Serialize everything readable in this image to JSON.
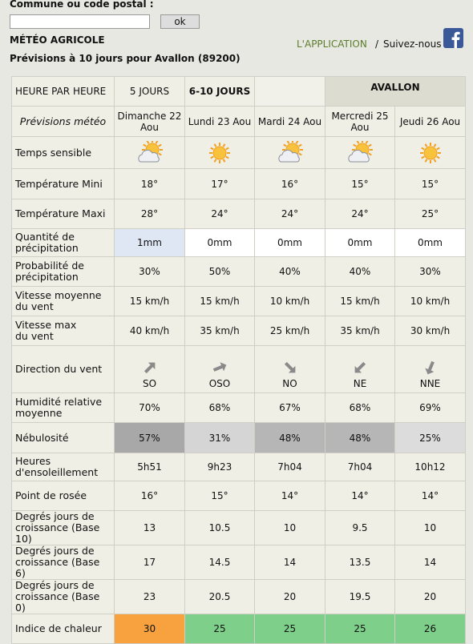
{
  "search": {
    "label": "Commune ou code postal :",
    "button": "ok"
  },
  "header": {
    "title": "MÉTÉO AGRICOLE",
    "subtitle": "Prévisions à 10 jours pour Avallon (89200)",
    "app_link": "L'APPLICATION",
    "separator": "/",
    "follow": "Suivez-nous"
  },
  "tabs": [
    "HEURE PAR HEURE",
    "5 JOURS",
    "6-10 JOURS"
  ],
  "location": "AVALLON",
  "table": {
    "corner": "Prévisions météo",
    "days": [
      "Dimanche 22 Aou",
      "Lundi 23 Aou",
      "Mardi 24 Aou",
      "Mercredi 25 Aou",
      "Jeudi 26 Aou"
    ],
    "rows": [
      {
        "label": "Temps sensible"
      },
      {
        "label": "Température Mini",
        "values": [
          "18°",
          "17°",
          "16°",
          "15°",
          "15°"
        ]
      },
      {
        "label": "Température Maxi",
        "values": [
          "28°",
          "24°",
          "24°",
          "24°",
          "25°"
        ]
      },
      {
        "label": "Quantité de\nprécipitation",
        "values": [
          "1mm",
          "0mm",
          "0mm",
          "0mm",
          "0mm"
        ],
        "colors": [
          "#dfe7f5",
          "#ffffff",
          "#ffffff",
          "#ffffff",
          "#ffffff"
        ]
      },
      {
        "label": "Probabilité de\nprécipitation",
        "values": [
          "30%",
          "50%",
          "40%",
          "40%",
          "30%"
        ]
      },
      {
        "label": "Vitesse moyenne\ndu vent",
        "values": [
          "15 km/h",
          "15 km/h",
          "10 km/h",
          "15 km/h",
          "10 km/h"
        ]
      },
      {
        "label": "Vitesse max\ndu vent",
        "values": [
          "40 km/h",
          "35 km/h",
          "25 km/h",
          "35 km/h",
          "30 km/h"
        ]
      },
      {
        "label": "Direction du vent",
        "values": [
          "SO",
          "OSO",
          "NO",
          "NE",
          "NNE"
        ]
      },
      {
        "label": "Humidité relative\nmoyenne",
        "values": [
          "70%",
          "68%",
          "67%",
          "68%",
          "69%"
        ]
      },
      {
        "label": "Nébulosité",
        "values": [
          "57%",
          "31%",
          "48%",
          "48%",
          "25%"
        ],
        "colors": [
          "#a8a8a8",
          "#d5d5d5",
          "#b6b6b6",
          "#b6b6b6",
          "#dcdcdc"
        ]
      },
      {
        "label": "Heures\nd'ensoleillement",
        "values": [
          "5h51",
          "9h23",
          "7h04",
          "7h04",
          "10h12"
        ]
      },
      {
        "label": "Point de rosée",
        "values": [
          "16°",
          "15°",
          "14°",
          "14°",
          "14°"
        ]
      },
      {
        "label": "Degrés jours de\ncroissance (Base 10)",
        "values": [
          "13",
          "10.5",
          "10",
          "9.5",
          "10"
        ]
      },
      {
        "label": "Degrés jours de\ncroissance (Base 6)",
        "values": [
          "17",
          "14.5",
          "14",
          "13.5",
          "14"
        ]
      },
      {
        "label": "Degrés jours de\ncroissance (Base 0)",
        "values": [
          "23",
          "20.5",
          "20",
          "19.5",
          "20"
        ]
      },
      {
        "label": "Indice de chaleur",
        "values": [
          "30",
          "25",
          "25",
          "25",
          "26"
        ],
        "colors": [
          "#f7a23e",
          "#7dcf8a",
          "#7dcf8a",
          "#7dcf8a",
          "#7dcf8a"
        ]
      }
    ]
  }
}
